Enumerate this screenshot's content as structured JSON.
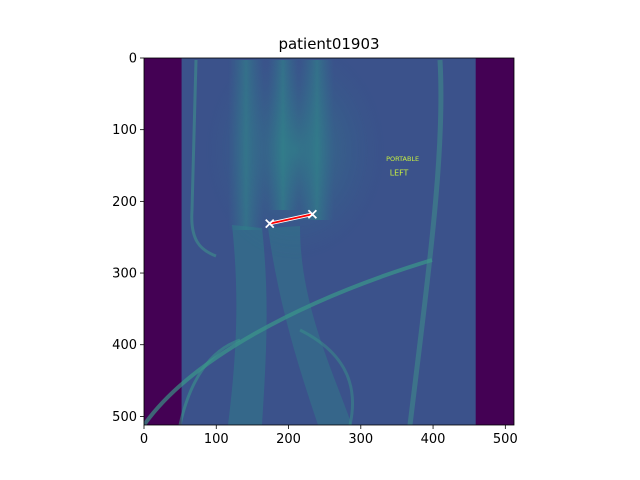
{
  "chart_data": {
    "type": "heatmap",
    "title": "patient01903",
    "xlabel": "",
    "ylabel": "",
    "xlim": [
      0,
      512
    ],
    "ylim": [
      512,
      0
    ],
    "xticks": [
      0,
      100,
      200,
      300,
      400,
      500
    ],
    "yticks": [
      0,
      100,
      200,
      300,
      400,
      500
    ],
    "colormap": "viridis",
    "padding_columns": {
      "left_end": 52,
      "right_start": 459,
      "color": "#440154"
    },
    "image_text": [
      {
        "text": "PORTABLE",
        "x": 335,
        "y": 138,
        "size": 9
      },
      {
        "text": "LEFT",
        "x": 340,
        "y": 157,
        "size": 11
      }
    ],
    "measurement": {
      "points": [
        [
          174,
          231
        ],
        [
          233,
          218
        ]
      ],
      "line_color": "#ff0000",
      "marker": "x",
      "marker_color": "#ffffff"
    }
  }
}
